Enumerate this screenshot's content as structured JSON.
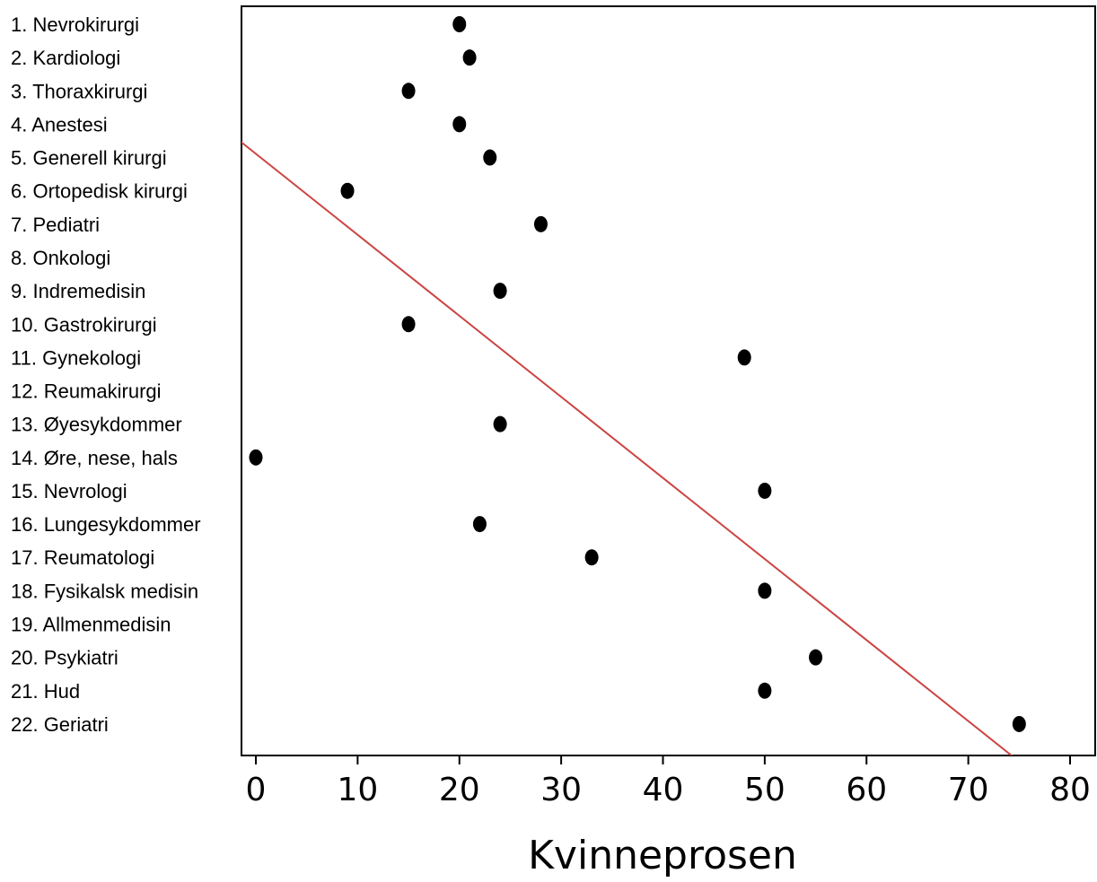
{
  "chart_data": {
    "type": "scatter",
    "title": "",
    "xlabel": "Kvinneprosen",
    "ylabel": "",
    "xlim": [
      -2,
      82
    ],
    "x_ticks": [
      0,
      10,
      20,
      30,
      40,
      50,
      60,
      70,
      80
    ],
    "grid": false,
    "legend": "none",
    "point_color": "#000000",
    "line_color": "#cc4444",
    "categories": [
      "1. Nevrokirurgi",
      "2. Kardiologi",
      "3. Thoraxkirurgi",
      "4. Anestesi",
      "5. Generell kirurgi",
      "6. Ortopedisk kirurgi",
      "7. Pediatri",
      "8. Onkologi",
      "9. Indremedisin",
      "10. Gastrokirurgi",
      "11. Gynekologi",
      "12. Reumakirurgi",
      "13. Øyesykdommer",
      "14. Øre, nese, hals",
      "15. Nevrologi",
      "16. Lungesykdommer",
      "17. Reumatologi",
      "18. Fysikalsk medisin",
      "19. Allmenmedisin",
      "20. Psykiatri",
      "21. Hud",
      "22. Geriatri"
    ],
    "values": [
      20,
      21,
      15,
      20,
      23,
      9,
      28,
      null,
      24,
      15,
      48,
      null,
      24,
      0,
      50,
      22,
      33,
      50,
      null,
      55,
      50,
      75
    ],
    "trend_line": {
      "x": [
        -2,
        79
      ],
      "y_rank": [
        3.4,
        23.1
      ]
    }
  }
}
